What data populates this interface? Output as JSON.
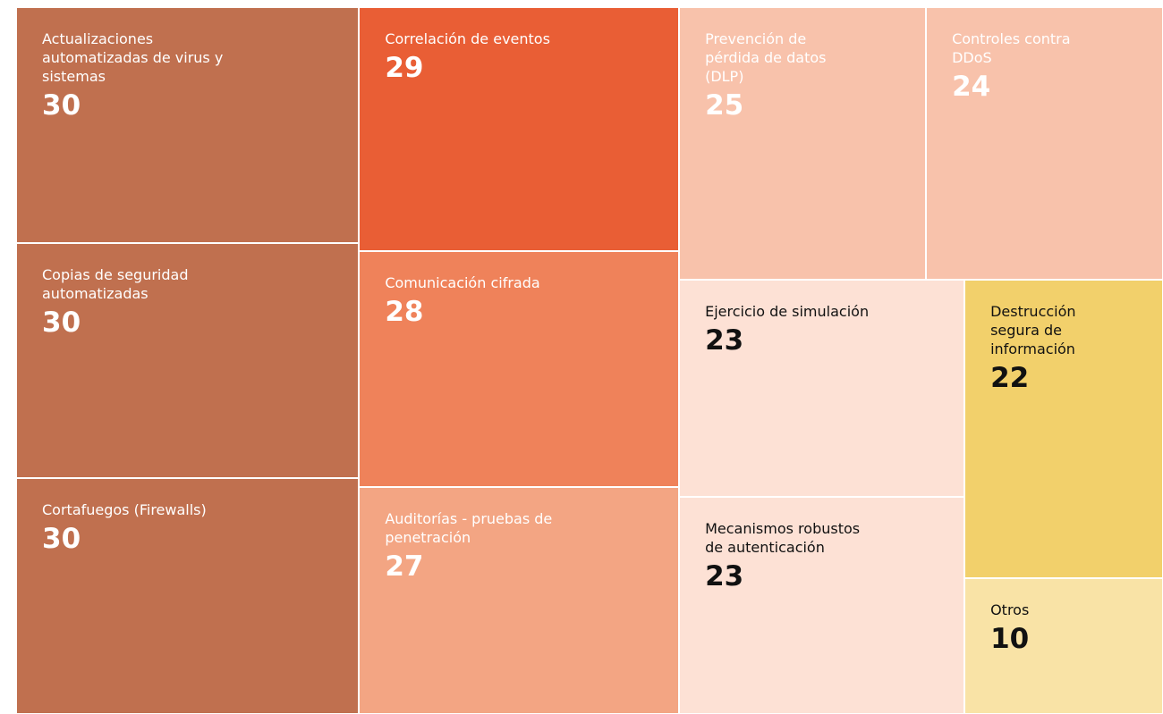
{
  "chart_data": {
    "type": "treemap",
    "categories": [
      "Actualizaciones automatizadas de virus y sistemas",
      "Copias de seguridad automatizadas",
      "Cortafuegos (Firewalls)",
      "Correlación de eventos",
      "Comunicación cifrada",
      "Auditorías - pruebas de penetración",
      "Prevención de pérdida de datos (DLP)",
      "Controles contra DDoS",
      "Ejercicio de simulación",
      "Mecanismos robustos de autenticación",
      "Destrucción segura de información",
      "Otros"
    ],
    "values": [
      30,
      30,
      30,
      29,
      28,
      27,
      25,
      24,
      23,
      23,
      22,
      10
    ],
    "colors": [
      "#c0704f",
      "#c0704f",
      "#c0704f",
      "#e95e35",
      "#ef825a",
      "#f3a583",
      "#f8c2ab",
      "#f8c2ab",
      "#fde1d5",
      "#fde1d5",
      "#f2d06b",
      "#f9e3a6"
    ],
    "label_colors": [
      "#ffffff",
      "#ffffff",
      "#ffffff",
      "#ffffff",
      "#ffffff",
      "#ffffff",
      "#ffffff",
      "#ffffff",
      "#111111",
      "#111111",
      "#111111",
      "#111111"
    ]
  }
}
